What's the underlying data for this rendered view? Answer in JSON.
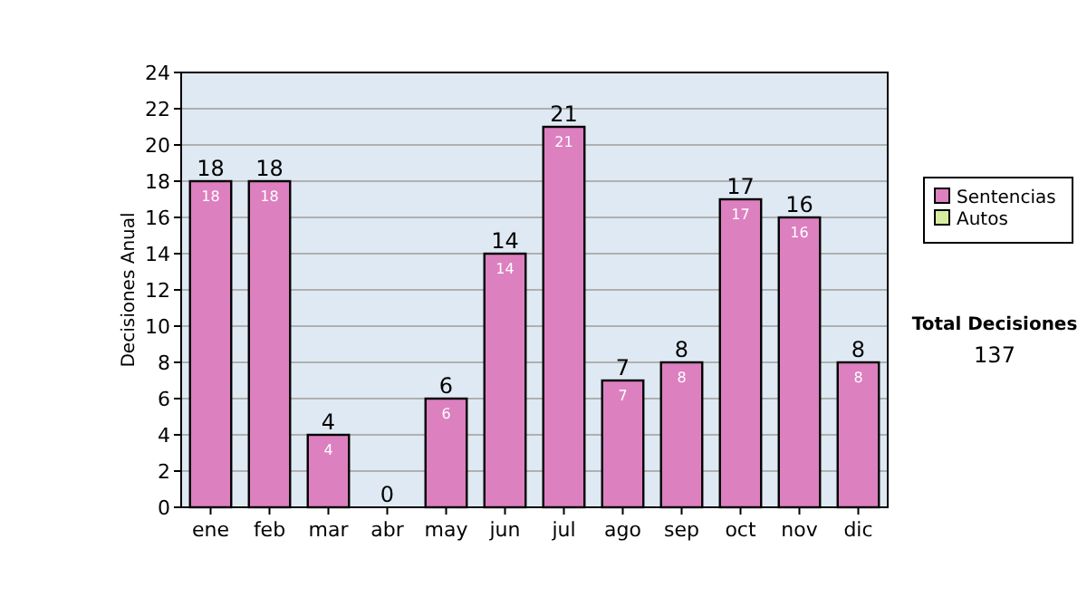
{
  "chart_data": {
    "type": "bar",
    "ylabel": "Decisiones Anual",
    "categories": [
      "ene",
      "feb",
      "mar",
      "abr",
      "may",
      "jun",
      "jul",
      "ago",
      "sep",
      "oct",
      "nov",
      "dic"
    ],
    "stacked": true,
    "series": [
      {
        "name": "Sentencias",
        "color": "#dc80c0",
        "values": [
          18,
          18,
          4,
          0,
          6,
          14,
          21,
          7,
          8,
          17,
          16,
          8
        ],
        "value_labels": [
          "18",
          "18",
          "4",
          null,
          "6",
          "14",
          "21",
          "7",
          "8",
          "17",
          "16",
          "8"
        ]
      },
      {
        "name": "Autos",
        "color": "#d8eca0",
        "values": [
          0,
          0,
          0,
          0,
          0,
          0,
          0,
          0,
          0,
          0,
          0,
          0
        ]
      }
    ],
    "totals": [
      "18",
      "18",
      "4",
      "0",
      "6",
      "14",
      "21",
      "7",
      "8",
      "17",
      "16",
      "8"
    ],
    "ylim": [
      0,
      24
    ],
    "yticks": [
      0,
      2,
      4,
      6,
      8,
      10,
      12,
      14,
      16,
      18,
      20,
      22,
      24
    ],
    "grid": "y",
    "legend": "right",
    "annotations": [
      "Total Decisiones",
      "137"
    ]
  }
}
